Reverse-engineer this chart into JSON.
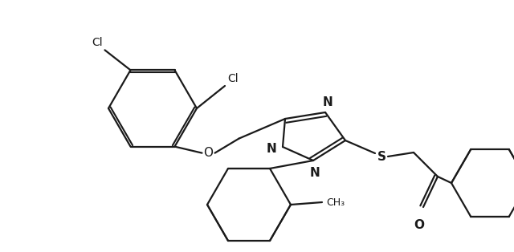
{
  "background_color": "#ffffff",
  "line_color": "#1a1a1a",
  "line_width": 1.6,
  "figsize": [
    6.4,
    3.14
  ],
  "dpi": 100,
  "xlim": [
    0,
    6.4
  ],
  "ylim": [
    0,
    3.14
  ]
}
